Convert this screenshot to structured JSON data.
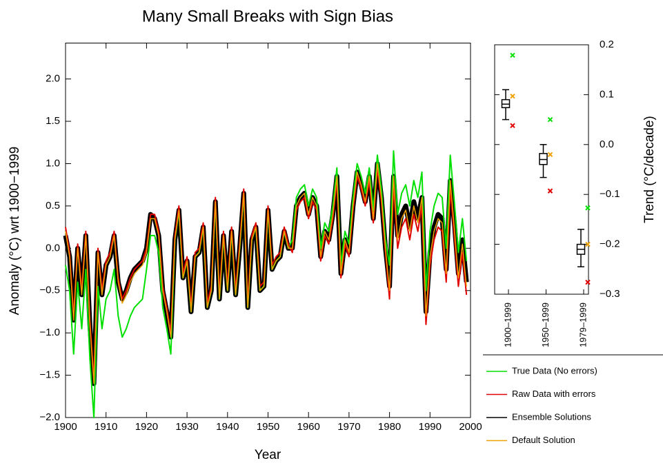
{
  "chart_data": [
    {
      "type": "line",
      "title": "Many Small Breaks with Sign Bias",
      "x_label": "Year",
      "y_label": "Anomaly (°C) wrt 1900−1999",
      "x": [
        1900,
        1901,
        1902,
        1903,
        1904,
        1905,
        1906,
        1907,
        1908,
        1909,
        1910,
        1911,
        1912,
        1913,
        1914,
        1915,
        1916,
        1917,
        1918,
        1919,
        1920,
        1921,
        1922,
        1923,
        1924,
        1925,
        1926,
        1927,
        1928,
        1929,
        1930,
        1931,
        1932,
        1933,
        1934,
        1935,
        1936,
        1937,
        1938,
        1939,
        1940,
        1941,
        1942,
        1943,
        1944,
        1945,
        1946,
        1947,
        1948,
        1949,
        1950,
        1951,
        1952,
        1953,
        1954,
        1955,
        1956,
        1957,
        1958,
        1959,
        1960,
        1961,
        1962,
        1963,
        1964,
        1965,
        1966,
        1967,
        1968,
        1969,
        1970,
        1971,
        1972,
        1973,
        1974,
        1975,
        1976,
        1977,
        1978,
        1979,
        1980,
        1981,
        1982,
        1983,
        1984,
        1985,
        1986,
        1987,
        1988,
        1989,
        1990,
        1991,
        1992,
        1993,
        1994,
        1995,
        1996,
        1997,
        1998,
        1999
      ],
      "xlim": [
        1900,
        2000
      ],
      "xticks": [
        1900,
        1910,
        1920,
        1930,
        1940,
        1950,
        1960,
        1970,
        1980,
        1990,
        2000
      ],
      "ylim": [
        -2.0,
        2.4
      ],
      "yticks": [
        {
          "value": -2.0,
          "label": "−2.0"
        },
        {
          "value": -1.5,
          "label": "−1.5"
        },
        {
          "value": -1.0,
          "label": "−1.0"
        },
        {
          "value": -0.5,
          "label": "−0.5"
        },
        {
          "value": 0,
          "label": "0.0"
        },
        {
          "value": 0.5,
          "label": "0.5"
        },
        {
          "value": 1.0,
          "label": "1.0"
        },
        {
          "value": 1.5,
          "label": "1.5"
        },
        {
          "value": 2.0,
          "label": "2.0"
        }
      ],
      "legend": "lower-right",
      "series": [
        {
          "name": "True Data (No errors)",
          "color": "#00e000",
          "width": 2,
          "values": [
            -0.2,
            -0.5,
            -1.25,
            -0.4,
            -0.95,
            -0.25,
            -1.3,
            -2.0,
            -0.45,
            -0.95,
            -0.6,
            -0.5,
            -0.25,
            -0.8,
            -1.05,
            -0.95,
            -0.8,
            -0.7,
            -0.65,
            -0.6,
            -0.25,
            0.15,
            0.15,
            -0.05,
            -0.7,
            -0.95,
            -1.25,
            0.1,
            0.45,
            -0.35,
            -0.15,
            -0.75,
            -0.1,
            -0.05,
            0.25,
            -0.7,
            -0.5,
            0.55,
            -0.6,
            0.15,
            -0.5,
            0.2,
            -0.55,
            0.0,
            0.65,
            -0.7,
            0.1,
            0.25,
            -0.5,
            -0.45,
            0.45,
            -0.25,
            -0.15,
            -0.1,
            0.2,
            0.0,
            0.1,
            0.6,
            0.7,
            0.75,
            0.5,
            0.7,
            0.6,
            0.0,
            0.3,
            0.2,
            0.5,
            0.95,
            -0.2,
            0.2,
            0.05,
            0.6,
            1.0,
            0.85,
            0.65,
            0.95,
            0.45,
            1.1,
            0.7,
            0.1,
            -0.2,
            1.15,
            0.4,
            0.65,
            0.75,
            0.5,
            0.8,
            0.6,
            0.9,
            -0.5,
            0.2,
            0.5,
            0.65,
            0.6,
            0.0,
            1.1,
            0.55,
            -0.05,
            0.35,
            -0.15
          ]
        },
        {
          "name": "Raw Data with errors",
          "color": "#e00000",
          "width": 2,
          "values": [
            0.25,
            -0.05,
            -0.8,
            0.05,
            -0.5,
            0.2,
            -0.85,
            -1.55,
            0.0,
            -0.5,
            -0.15,
            -0.05,
            0.2,
            -0.35,
            -0.6,
            -0.5,
            -0.35,
            -0.25,
            -0.2,
            -0.15,
            0.0,
            0.4,
            0.4,
            0.2,
            -0.45,
            -0.7,
            -1.0,
            0.15,
            0.5,
            -0.3,
            -0.1,
            -0.7,
            -0.05,
            0.0,
            0.3,
            -0.65,
            -0.45,
            0.6,
            -0.55,
            0.2,
            -0.45,
            0.25,
            -0.5,
            0.05,
            0.7,
            -0.65,
            0.15,
            0.3,
            -0.45,
            -0.4,
            0.5,
            -0.2,
            -0.1,
            -0.05,
            0.25,
            0.05,
            -0.05,
            0.45,
            0.55,
            0.6,
            0.35,
            0.55,
            0.45,
            -0.15,
            0.15,
            0.05,
            0.35,
            0.8,
            -0.35,
            0.05,
            -0.1,
            0.45,
            0.85,
            0.7,
            0.5,
            0.8,
            0.3,
            0.95,
            0.55,
            -0.05,
            -0.6,
            0.75,
            0.0,
            0.25,
            0.35,
            0.1,
            0.4,
            0.2,
            0.5,
            -0.9,
            -0.2,
            0.1,
            0.25,
            0.2,
            -0.4,
            0.7,
            0.15,
            -0.45,
            -0.05,
            -0.55
          ]
        },
        {
          "name": "Ensemble Solutions",
          "color": "#000000",
          "width": 7,
          "values": [
            0.15,
            -0.1,
            -0.85,
            0.0,
            -0.55,
            0.15,
            -0.9,
            -1.6,
            -0.05,
            -0.55,
            -0.2,
            -0.1,
            0.15,
            -0.4,
            -0.6,
            -0.5,
            -0.35,
            -0.25,
            -0.2,
            -0.15,
            0.0,
            0.4,
            0.35,
            0.15,
            -0.5,
            -0.75,
            -1.05,
            0.1,
            0.45,
            -0.35,
            -0.15,
            -0.75,
            -0.1,
            -0.05,
            0.25,
            -0.7,
            -0.5,
            0.55,
            -0.6,
            0.15,
            -0.5,
            0.2,
            -0.55,
            0.0,
            0.65,
            -0.7,
            0.1,
            0.25,
            -0.5,
            -0.45,
            0.45,
            -0.25,
            -0.15,
            -0.1,
            0.2,
            0.0,
            0.0,
            0.5,
            0.6,
            0.65,
            0.4,
            0.6,
            0.5,
            -0.1,
            0.2,
            0.1,
            0.4,
            0.85,
            -0.3,
            0.1,
            -0.05,
            0.5,
            0.9,
            0.75,
            0.55,
            0.85,
            0.35,
            1.0,
            0.6,
            0.0,
            -0.45,
            0.85,
            0.15,
            0.4,
            0.5,
            0.25,
            0.55,
            0.35,
            0.6,
            -0.75,
            -0.05,
            0.25,
            0.4,
            0.35,
            -0.25,
            0.8,
            0.3,
            -0.3,
            0.1,
            -0.4
          ]
        },
        {
          "name": "Default Solution",
          "color": "#f0a000",
          "width": 1.5,
          "values": [
            0.2,
            -0.1,
            -0.85,
            0.0,
            -0.55,
            0.15,
            -0.9,
            -1.6,
            -0.05,
            -0.55,
            -0.2,
            -0.1,
            0.15,
            -0.4,
            -0.65,
            -0.55,
            -0.4,
            -0.3,
            -0.25,
            -0.2,
            -0.05,
            0.35,
            0.35,
            0.15,
            -0.5,
            -0.75,
            -1.05,
            0.1,
            0.45,
            -0.35,
            -0.15,
            -0.75,
            -0.1,
            -0.05,
            0.25,
            -0.7,
            -0.5,
            0.55,
            -0.6,
            0.15,
            -0.5,
            0.2,
            -0.55,
            0.0,
            0.65,
            -0.7,
            0.1,
            0.25,
            -0.5,
            -0.45,
            0.45,
            -0.25,
            -0.15,
            -0.1,
            0.2,
            0.0,
            0.0,
            0.5,
            0.6,
            0.65,
            0.4,
            0.6,
            0.5,
            -0.1,
            0.2,
            0.1,
            0.4,
            0.85,
            -0.3,
            0.1,
            -0.05,
            0.5,
            0.9,
            0.75,
            0.55,
            0.85,
            0.35,
            1.0,
            0.6,
            0.0,
            -0.5,
            0.85,
            0.1,
            0.35,
            0.45,
            0.2,
            0.5,
            0.3,
            0.6,
            -0.8,
            -0.1,
            0.2,
            0.35,
            0.3,
            -0.3,
            0.8,
            0.25,
            -0.35,
            0.05,
            -0.45
          ]
        }
      ]
    },
    {
      "type": "box",
      "y_label": "Trend (°C/decade)",
      "categories": [
        "1900–1999",
        "1950–1999",
        "1979–1999"
      ],
      "ylim": [
        -0.3,
        0.2
      ],
      "yticks": [
        {
          "value": -0.3,
          "label": "−0.3"
        },
        {
          "value": -0.2,
          "label": "−0.2"
        },
        {
          "value": -0.1,
          "label": "−0.1"
        },
        {
          "value": 0,
          "label": "0.0"
        },
        {
          "value": 0.1,
          "label": "0.1"
        },
        {
          "value": 0.2,
          "label": "0.2"
        }
      ],
      "boxes": [
        {
          "low": 0.05,
          "q1": 0.074,
          "median": 0.081,
          "q3": 0.09,
          "high": 0.11
        },
        {
          "low": -0.066,
          "q1": -0.04,
          "median": -0.03,
          "q3": -0.018,
          "high": 0.0
        },
        {
          "low": -0.245,
          "q1": -0.22,
          "median": -0.21,
          "q3": -0.2,
          "high": -0.17
        }
      ],
      "series": [
        {
          "color": "#00e000",
          "values": [
            0.179,
            0.05,
            -0.127
          ]
        },
        {
          "color": "#e00000",
          "values": [
            0.038,
            -0.093,
            -0.276
          ]
        },
        {
          "color": "#f0a000",
          "values": [
            0.097,
            -0.02,
            -0.2
          ]
        }
      ]
    }
  ]
}
